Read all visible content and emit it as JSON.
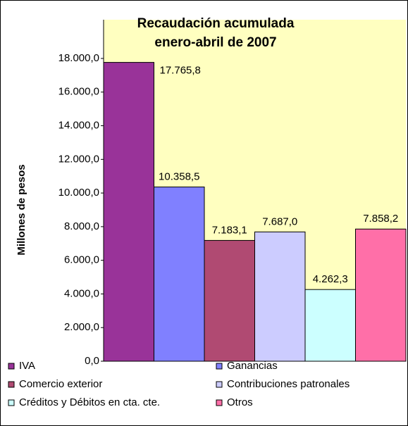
{
  "chart_data": {
    "type": "bar",
    "title": [
      "Recaudación acumulada",
      "enero-abril de 2007"
    ],
    "y_label": "Millones de pesos",
    "categories": [
      "IVA",
      "Ganancias",
      "Comercio exterior",
      "Contribuciones patronales",
      "Créditos y Débitos en cta. cte.",
      "Otros"
    ],
    "values": [
      17765.8,
      10358.5,
      7183.1,
      7687.0,
      4262.3,
      7858.2
    ],
    "value_labels": [
      "17.765,8",
      "10.358,5",
      "7.183,1",
      "7.687,0",
      "4.262,3",
      "7.858,2"
    ],
    "colors": [
      "#993399",
      "#8080ff",
      "#b04a72",
      "#ccccff",
      "#ccffff",
      "#ff6fa8"
    ],
    "ylim": [
      0,
      18000
    ],
    "yticks": [
      {
        "value": 0,
        "label": "0,0"
      },
      {
        "value": 2000,
        "label": "2.000,0"
      },
      {
        "value": 4000,
        "label": "4.000,0"
      },
      {
        "value": 6000,
        "label": "6.000,0"
      },
      {
        "value": 8000,
        "label": "8.000,0"
      },
      {
        "value": 10000,
        "label": "10.000,0"
      },
      {
        "value": 12000,
        "label": "12.000,0"
      },
      {
        "value": 14000,
        "label": "14.000,0"
      },
      {
        "value": 16000,
        "label": "16.000,0"
      },
      {
        "value": 18000,
        "label": "18.000,0"
      }
    ],
    "legend": "bottom"
  }
}
